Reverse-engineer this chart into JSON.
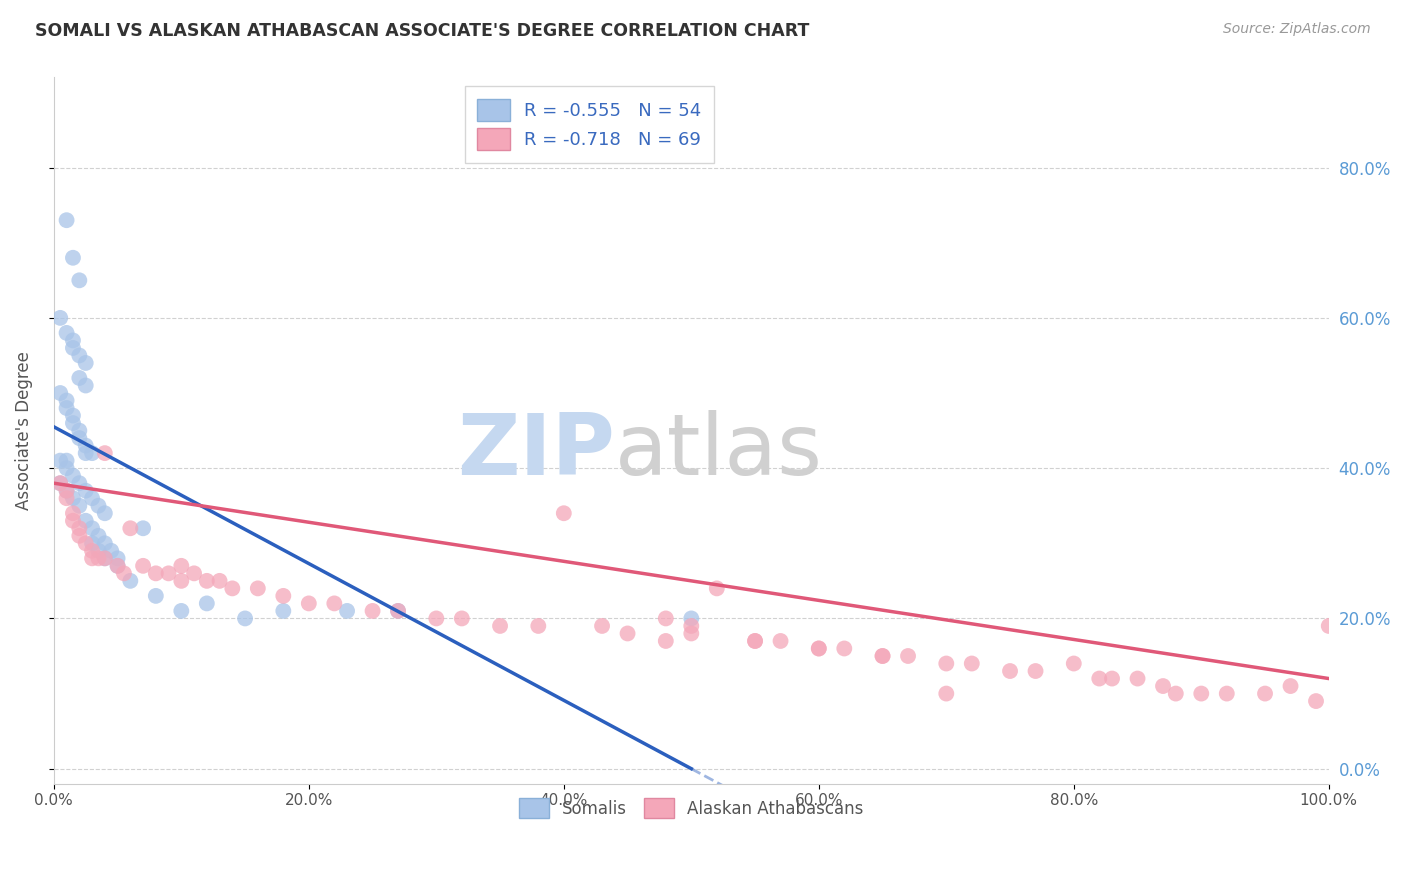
{
  "title": "SOMALI VS ALASKAN ATHABASCAN ASSOCIATE'S DEGREE CORRELATION CHART",
  "source": "Source: ZipAtlas.com",
  "ylabel": "Associate's Degree",
  "watermark_ZIP": "ZIP",
  "watermark_atlas": "atlas",
  "legend_somali_R": "R = -0.555",
  "legend_somali_N": "N = 54",
  "legend_athabascan_R": "R = -0.718",
  "legend_athabascan_N": "N = 69",
  "somali_color": "#a8c4e8",
  "athabascan_color": "#f4a7b9",
  "somali_line_color": "#2b5fbe",
  "athabascan_line_color": "#e05878",
  "right_axis_color": "#5b9bd5",
  "ytick_labels": [
    "0.0%",
    "20.0%",
    "40.0%",
    "60.0%",
    "80.0%"
  ],
  "ytick_values": [
    0.0,
    0.2,
    0.4,
    0.6,
    0.8
  ],
  "xlim": [
    0.0,
    1.0
  ],
  "ylim": [
    -0.02,
    0.92
  ],
  "somali_line_x0": 0.0,
  "somali_line_y0": 0.455,
  "somali_line_x1": 0.5,
  "somali_line_y1": 0.0,
  "athabascan_line_x0": 0.0,
  "athabascan_line_y0": 0.38,
  "athabascan_line_x1": 1.0,
  "athabascan_line_y1": 0.12,
  "somali_x": [
    0.01,
    0.015,
    0.02,
    0.005,
    0.01,
    0.015,
    0.015,
    0.02,
    0.025,
    0.02,
    0.025,
    0.005,
    0.01,
    0.01,
    0.015,
    0.015,
    0.02,
    0.02,
    0.025,
    0.025,
    0.03,
    0.005,
    0.01,
    0.01,
    0.015,
    0.02,
    0.025,
    0.03,
    0.035,
    0.04,
    0.005,
    0.01,
    0.015,
    0.02,
    0.025,
    0.03,
    0.035,
    0.04,
    0.045,
    0.05,
    0.03,
    0.035,
    0.04,
    0.05,
    0.06,
    0.07,
    0.08,
    0.1,
    0.12,
    0.15,
    0.18,
    0.23,
    0.27,
    0.5
  ],
  "somali_y": [
    0.73,
    0.68,
    0.65,
    0.6,
    0.58,
    0.57,
    0.56,
    0.55,
    0.54,
    0.52,
    0.51,
    0.5,
    0.49,
    0.48,
    0.47,
    0.46,
    0.45,
    0.44,
    0.43,
    0.42,
    0.42,
    0.41,
    0.41,
    0.4,
    0.39,
    0.38,
    0.37,
    0.36,
    0.35,
    0.34,
    0.38,
    0.37,
    0.36,
    0.35,
    0.33,
    0.32,
    0.31,
    0.3,
    0.29,
    0.28,
    0.3,
    0.29,
    0.28,
    0.27,
    0.25,
    0.32,
    0.23,
    0.21,
    0.22,
    0.2,
    0.21,
    0.21,
    0.21,
    0.2
  ],
  "athabascan_x": [
    0.005,
    0.01,
    0.01,
    0.015,
    0.015,
    0.02,
    0.02,
    0.025,
    0.03,
    0.03,
    0.035,
    0.04,
    0.04,
    0.05,
    0.055,
    0.06,
    0.07,
    0.08,
    0.09,
    0.1,
    0.1,
    0.11,
    0.12,
    0.13,
    0.14,
    0.16,
    0.18,
    0.2,
    0.22,
    0.25,
    0.27,
    0.3,
    0.32,
    0.35,
    0.38,
    0.4,
    0.43,
    0.45,
    0.48,
    0.5,
    0.52,
    0.55,
    0.57,
    0.6,
    0.62,
    0.65,
    0.67,
    0.7,
    0.72,
    0.75,
    0.77,
    0.8,
    0.82,
    0.83,
    0.85,
    0.87,
    0.88,
    0.9,
    0.92,
    0.95,
    0.97,
    0.99,
    1.0,
    0.48,
    0.5,
    0.55,
    0.6,
    0.65,
    0.7
  ],
  "athabascan_y": [
    0.38,
    0.37,
    0.36,
    0.34,
    0.33,
    0.32,
    0.31,
    0.3,
    0.29,
    0.28,
    0.28,
    0.42,
    0.28,
    0.27,
    0.26,
    0.32,
    0.27,
    0.26,
    0.26,
    0.27,
    0.25,
    0.26,
    0.25,
    0.25,
    0.24,
    0.24,
    0.23,
    0.22,
    0.22,
    0.21,
    0.21,
    0.2,
    0.2,
    0.19,
    0.19,
    0.34,
    0.19,
    0.18,
    0.17,
    0.18,
    0.24,
    0.17,
    0.17,
    0.16,
    0.16,
    0.15,
    0.15,
    0.14,
    0.14,
    0.13,
    0.13,
    0.14,
    0.12,
    0.12,
    0.12,
    0.11,
    0.1,
    0.1,
    0.1,
    0.1,
    0.11,
    0.09,
    0.19,
    0.2,
    0.19,
    0.17,
    0.16,
    0.15,
    0.1
  ]
}
